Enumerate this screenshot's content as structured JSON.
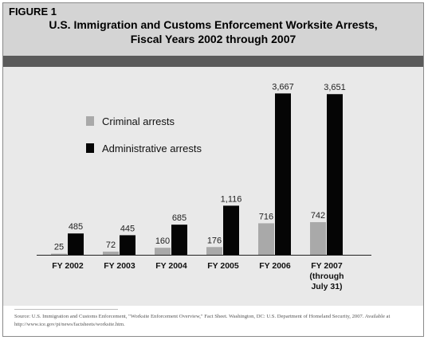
{
  "figure_label": "FIGURE 1",
  "title_line1": "U.S. Immigration and Customs Enforcement Worksite Arrests,",
  "title_line2": "Fiscal Years 2002 through 2007",
  "source_text": "Source: U.S. Immigration and Customs Enforcement, \"Worksite Enforcement Overview,\" Fact Sheet. Washington, DC: U.S. Department of Homeland Security, 2007. Available at http://www.ice.gov/pi/news/factsheets/worksite.htm.",
  "colors": {
    "criminal": "#a9a9a9",
    "administrative": "#050505",
    "header": "#d4d4d4",
    "band": "#5a5a5a",
    "plot_bg": "#e9e9e9"
  },
  "chart_data": {
    "type": "bar",
    "title": "U.S. Immigration and Customs Enforcement Worksite Arrests, Fiscal Years 2002 through 2007",
    "categories": [
      [
        "FY 2002"
      ],
      [
        "FY 2003"
      ],
      [
        "FY 2004"
      ],
      [
        "FY 2005"
      ],
      [
        "FY 2006"
      ],
      [
        "FY 2007",
        "(through",
        "July 31)"
      ]
    ],
    "series": [
      {
        "name": "Criminal arrests",
        "values": [
          25,
          72,
          160,
          176,
          716,
          742
        ],
        "labels": [
          "25",
          "72",
          "160",
          "176",
          "716",
          "742"
        ]
      },
      {
        "name": "Administrative arrests",
        "values": [
          485,
          445,
          685,
          1116,
          3667,
          3651
        ],
        "labels": [
          "485",
          "445",
          "685",
          "1,116",
          "3,667",
          "3,651"
        ]
      }
    ],
    "ylim": [
      0,
      3800
    ],
    "legend": {
      "position": "upper-left"
    },
    "grid": false
  }
}
